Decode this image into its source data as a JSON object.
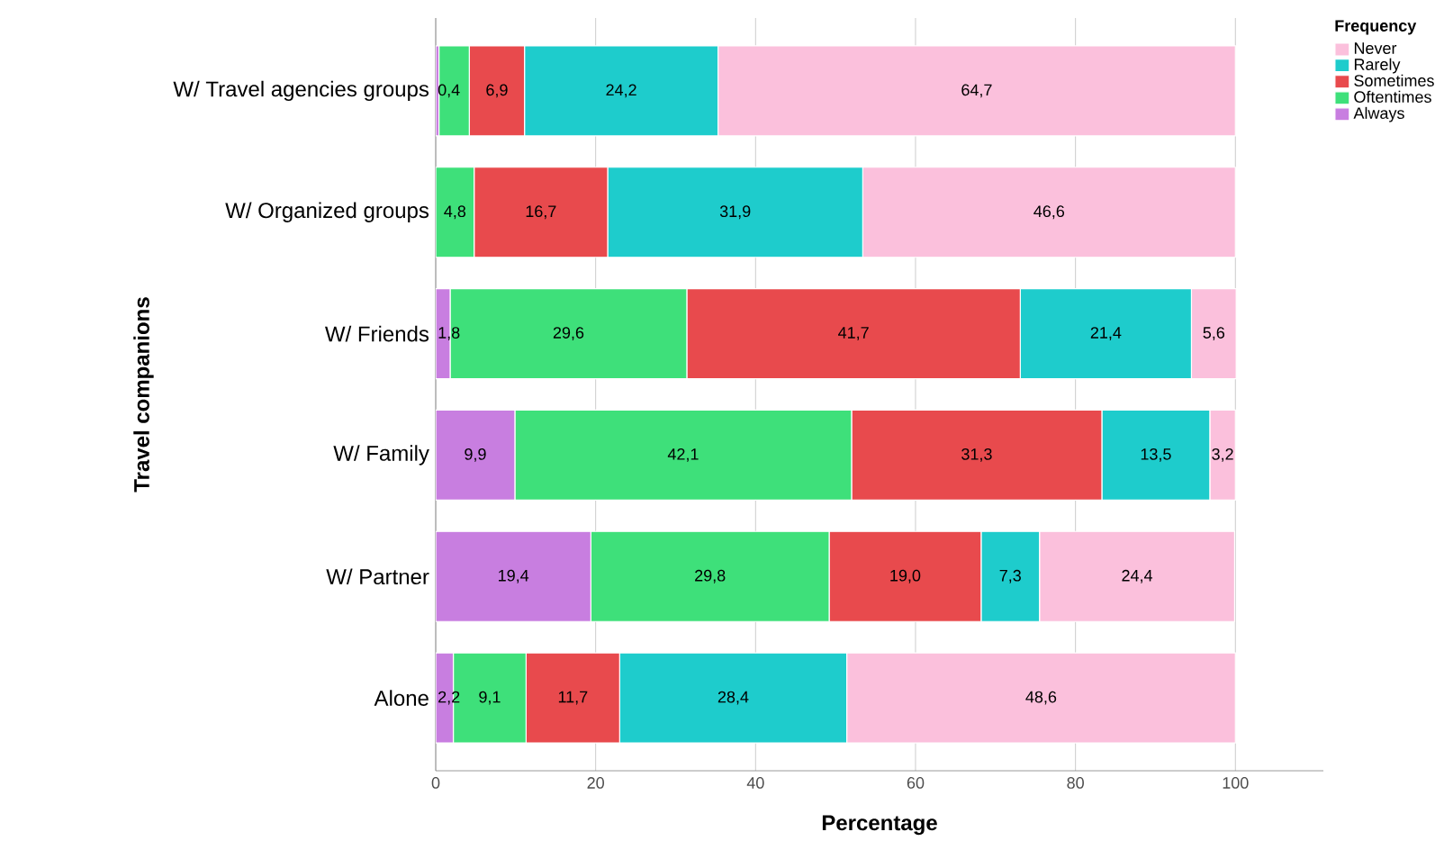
{
  "chart_data": {
    "type": "bar",
    "orientation": "horizontal",
    "stacked": true,
    "xlabel": "Percentage",
    "ylabel": "Travel companions",
    "legend_title": "Frequency",
    "categories": [
      "W/ Travel agencies groups",
      "W/ Organized groups",
      "W/ Friends",
      "W/ Family",
      "W/ Partner",
      "Alone"
    ],
    "series": [
      {
        "name": "Always",
        "color": "#c87ee0",
        "values": [
          0.4,
          0,
          1.8,
          9.9,
          19.4,
          2.2
        ],
        "value_labels": [
          "0,4",
          null,
          "1,8",
          "9,9",
          "19,4",
          "2,2"
        ]
      },
      {
        "name": "Oftentimes",
        "color": "#3ee07a",
        "values": [
          3.8,
          4.8,
          29.6,
          42.1,
          29.8,
          9.1
        ],
        "value_labels": [
          null,
          "4,8",
          "29,6",
          "42,1",
          "29,8",
          "9,1"
        ]
      },
      {
        "name": "Sometimes",
        "color": "#e84a4d",
        "values": [
          6.9,
          16.7,
          41.7,
          31.3,
          19.0,
          11.7
        ],
        "value_labels": [
          "6,9",
          "16,7",
          "41,7",
          "31,3",
          "19,0",
          "11,7"
        ]
      },
      {
        "name": "Rarely",
        "color": "#1ecccc",
        "values": [
          24.2,
          31.9,
          21.4,
          13.5,
          7.3,
          28.4
        ],
        "value_labels": [
          "24,2",
          "31,9",
          "21,4",
          "13,5",
          "7,3",
          "28,4"
        ]
      },
      {
        "name": "Never",
        "color": "#fbc0dc",
        "values": [
          64.7,
          46.6,
          5.6,
          3.2,
          24.4,
          48.6
        ],
        "value_labels": [
          "64,7",
          "46,6",
          "5,6",
          "3,2",
          "24,4",
          "48,6"
        ]
      }
    ],
    "xlim": [
      0,
      111
    ],
    "xticks": [
      0,
      20,
      40,
      60,
      80,
      100
    ],
    "grid": "x",
    "legend": "top right"
  }
}
